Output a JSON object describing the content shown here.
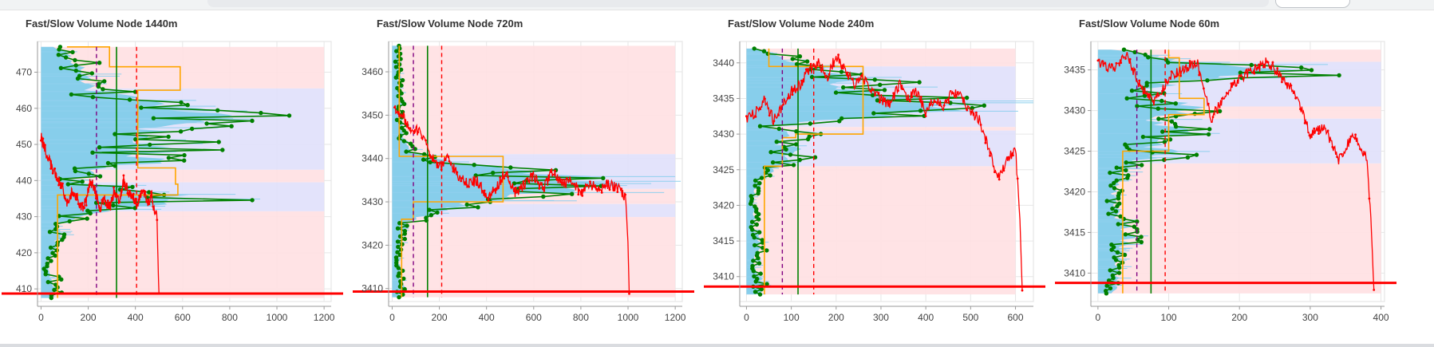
{
  "colors": {
    "hvn_band": "#ffe0e2",
    "lvn_band": "#e1e1fb",
    "fast_fill": "#87ceeb",
    "slow_profile": "#ffa500",
    "node_line": "#008000",
    "node_point": "#008000",
    "price": "#ff0000",
    "poc": "#008000",
    "va_low": "#800080",
    "va_high": "#ff0000",
    "current_price": "#ff0000",
    "grid": "#e6e6e6"
  },
  "chart_data": [
    {
      "type": "area",
      "title": "Fast/Slow Volume Node 1440m",
      "xlabel": "",
      "ylabel": "",
      "xlim": [
        -15,
        1230
      ],
      "ylim": [
        406.5,
        478.5
      ],
      "x_ticks": [
        "0",
        "200",
        "400",
        "600",
        "800",
        "1000",
        "1200"
      ],
      "x_tick_values": [
        0,
        200,
        400,
        600,
        800,
        1000,
        1200
      ],
      "y_ticks": [
        "410",
        "420",
        "430",
        "440",
        "450",
        "460",
        "470"
      ],
      "y_tick_values": [
        410,
        420,
        430,
        440,
        450,
        460,
        470
      ],
      "grid": true,
      "price_range": [
        407.5,
        477
      ],
      "hvn_bands": [
        [
          407.5,
          431.5
        ],
        [
          439.5,
          443
        ],
        [
          465.5,
          477
        ]
      ],
      "lvn_bands": [
        [
          431.5,
          439.5
        ],
        [
          443,
          465.5
        ]
      ],
      "fast_profile": {
        "levels": [
          407.5,
          410,
          413,
          416,
          419,
          422,
          425,
          428,
          431,
          434,
          435.5,
          437,
          440,
          443,
          446,
          449,
          452,
          455,
          458,
          461,
          464,
          467,
          470,
          473,
          477
        ],
        "volumes": [
          40,
          80,
          60,
          30,
          50,
          90,
          100,
          90,
          240,
          620,
          700,
          560,
          170,
          330,
          640,
          560,
          600,
          580,
          930,
          620,
          350,
          290,
          240,
          170,
          80
        ]
      },
      "slow_profile": {
        "levels": [
          407.5,
          431,
          436,
          439,
          443.5,
          465,
          468.5,
          471.5,
          477
        ],
        "volumes": [
          70,
          70,
          580,
          570,
          410,
          590,
          590,
          290,
          110
        ]
      },
      "price_path": {
        "x": [
          0,
          30,
          60,
          90,
          110,
          130,
          150,
          170,
          190,
          210,
          230,
          250,
          270,
          290,
          310,
          330,
          350,
          370,
          390,
          410,
          430,
          450,
          470,
          480,
          490,
          497,
          500
        ],
        "y": [
          452,
          446,
          442,
          438,
          434,
          437,
          436,
          432,
          434,
          440,
          437,
          432,
          435,
          432,
          437,
          434,
          440,
          437,
          435,
          433,
          438,
          434,
          436,
          431,
          433,
          415,
          408.5
        ]
      },
      "poc": 320,
      "va_low": 235,
      "va_high": 405,
      "current_price": 408.7
    },
    {
      "type": "area",
      "title": "Fast/Slow Volume Node 720m",
      "xlabel": "",
      "ylabel": "",
      "xlim": [
        -15,
        1230
      ],
      "ylim": [
        3407,
        3467
      ],
      "x_ticks": [
        "0",
        "200",
        "400",
        "600",
        "800",
        "1000",
        "1200"
      ],
      "x_tick_values": [
        0,
        200,
        400,
        600,
        800,
        1000,
        1200
      ],
      "y_ticks": [
        "3410",
        "3420",
        "3430",
        "3440",
        "3450",
        "3460"
      ],
      "y_tick_values": [
        3410,
        3420,
        3430,
        3440,
        3450,
        3460
      ],
      "grid": true,
      "price_range": [
        3408,
        3466
      ],
      "hvn_bands": [
        [
          3408,
          3426.5
        ],
        [
          3429.5,
          3433
        ],
        [
          3441,
          3466
        ]
      ],
      "lvn_bands": [
        [
          3426.5,
          3429.5
        ],
        [
          3433,
          3441
        ]
      ],
      "fast_profile": {
        "levels": [
          3408,
          3410,
          3413,
          3416,
          3419,
          3422,
          3425,
          3428,
          3430,
          3432,
          3434,
          3436,
          3438,
          3440,
          3442,
          3445,
          3448,
          3451,
          3454,
          3457,
          3460,
          3463,
          3466
        ],
        "volumes": [
          40,
          60,
          45,
          35,
          40,
          55,
          70,
          260,
          540,
          860,
          1000,
          870,
          450,
          210,
          95,
          60,
          55,
          50,
          45,
          40,
          40,
          35,
          30
        ]
      },
      "slow_profile": {
        "levels": [
          3408,
          3426,
          3430,
          3433,
          3440.5,
          3466
        ],
        "volumes": [
          40,
          90,
          470,
          470,
          30,
          30
        ]
      },
      "price_path": {
        "x": [
          10,
          40,
          80,
          120,
          160,
          200,
          240,
          280,
          320,
          360,
          400,
          440,
          480,
          520,
          560,
          600,
          640,
          680,
          720,
          760,
          800,
          840,
          880,
          920,
          960,
          990,
          1000,
          1005
        ],
        "y": [
          3452,
          3450,
          3447,
          3446,
          3441,
          3438,
          3440,
          3436,
          3434,
          3435,
          3431,
          3433,
          3437,
          3432,
          3434,
          3436,
          3433,
          3437,
          3434,
          3435,
          3432,
          3434,
          3433,
          3434,
          3433,
          3431,
          3420,
          3409
        ]
      },
      "poc": 150,
      "va_low": 90,
      "va_high": 210,
      "current_price": 3409.3
    },
    {
      "type": "area",
      "title": "Fast/Slow Volume Node 240m",
      "xlabel": "",
      "ylabel": "",
      "xlim": [
        -15,
        640
      ],
      "ylim": [
        3406.5,
        3443
      ],
      "x_ticks": [
        "0",
        "100",
        "200",
        "300",
        "400",
        "500",
        "600"
      ],
      "x_tick_values": [
        0,
        100,
        200,
        300,
        400,
        500,
        600
      ],
      "y_ticks": [
        "3410",
        "3415",
        "3420",
        "3425",
        "3430",
        "3435",
        "3440"
      ],
      "y_tick_values": [
        3410,
        3415,
        3420,
        3425,
        3430,
        3435,
        3440
      ],
      "grid": true,
      "price_range": [
        3407.5,
        3442
      ],
      "hvn_bands": [
        [
          3407.5,
          3425.5
        ],
        [
          3430.5,
          3431
        ],
        [
          3439.5,
          3442
        ]
      ],
      "lvn_bands": [
        [
          3425.5,
          3430.5
        ],
        [
          3431,
          3439.5
        ]
      ],
      "fast_profile": {
        "levels": [
          3407.5,
          3409,
          3411,
          3413,
          3415,
          3417,
          3419,
          3421,
          3423,
          3425,
          3427,
          3429,
          3430,
          3431,
          3433,
          3435,
          3437,
          3439,
          3441,
          3442
        ],
        "volumes": [
          30,
          45,
          25,
          30,
          40,
          20,
          25,
          20,
          35,
          70,
          150,
          90,
          160,
          40,
          500,
          480,
          290,
          220,
          80,
          40
        ]
      },
      "slow_profile": {
        "levels": [
          3407.5,
          3425.5,
          3429.5,
          3430,
          3439.5,
          3442
        ],
        "volumes": [
          40,
          80,
          110,
          260,
          50,
          50
        ]
      },
      "price_path": {
        "x": [
          0,
          20,
          40,
          60,
          80,
          100,
          120,
          140,
          160,
          180,
          200,
          220,
          240,
          260,
          280,
          300,
          320,
          340,
          360,
          380,
          400,
          420,
          440,
          460,
          480,
          500,
          520,
          540,
          560,
          580,
          600,
          610,
          615
        ],
        "y": [
          3432,
          3433,
          3435,
          3432,
          3434,
          3436,
          3437,
          3439,
          3440,
          3438,
          3441,
          3439,
          3437,
          3438,
          3436,
          3435,
          3434,
          3437,
          3435,
          3436,
          3433,
          3435,
          3434,
          3436,
          3435,
          3433,
          3432,
          3428,
          3424,
          3426,
          3428,
          3418,
          3408
        ]
      },
      "poc": 115,
      "va_low": 80,
      "va_high": 150,
      "current_price": 3408.6
    },
    {
      "type": "area",
      "title": "Fast/Slow Volume Node 60m",
      "xlabel": "",
      "ylabel": "",
      "xlim": [
        -10,
        405
      ],
      "ylim": [
        3406.5,
        3438.5
      ],
      "x_ticks": [
        "0",
        "100",
        "200",
        "300",
        "400"
      ],
      "x_tick_values": [
        0,
        100,
        200,
        300,
        400
      ],
      "y_ticks": [
        "3410",
        "3415",
        "3420",
        "3425",
        "3430",
        "3435"
      ],
      "y_tick_values": [
        3410,
        3415,
        3420,
        3425,
        3430,
        3435
      ],
      "grid": true,
      "price_range": [
        3407.5,
        3437.5
      ],
      "hvn_bands": [
        [
          3407.5,
          3423.5
        ],
        [
          3429,
          3430.5
        ],
        [
          3436,
          3437.5
        ]
      ],
      "lvn_bands": [
        [
          3423.5,
          3429
        ],
        [
          3430.5,
          3436
        ]
      ],
      "fast_profile": {
        "levels": [
          3407.5,
          3409,
          3411,
          3413,
          3415,
          3417,
          3419,
          3421,
          3423,
          3425,
          3426,
          3427.5,
          3429,
          3430.5,
          3432,
          3433.5,
          3435,
          3436.5,
          3437.5
        ],
        "volumes": [
          20,
          40,
          35,
          45,
          60,
          35,
          30,
          35,
          50,
          130,
          90,
          160,
          110,
          160,
          90,
          120,
          340,
          110,
          30
        ]
      },
      "slow_profile": {
        "levels": [
          3407.5,
          3423,
          3425,
          3429.5,
          3431.5,
          3436.5,
          3437.5
        ],
        "volumes": [
          35,
          35,
          100,
          150,
          115,
          100,
          100
        ]
      },
      "price_path": {
        "x": [
          0,
          20,
          40,
          60,
          80,
          100,
          120,
          140,
          160,
          180,
          200,
          220,
          240,
          260,
          280,
          300,
          320,
          340,
          360,
          380,
          385,
          390
        ],
        "y": [
          3436,
          3435,
          3437,
          3433,
          3431,
          3434,
          3435,
          3436,
          3429,
          3432,
          3434,
          3435,
          3436,
          3434,
          3432,
          3427,
          3428,
          3424,
          3427,
          3424,
          3418,
          3408
        ]
      },
      "poc": 75,
      "va_low": 55,
      "va_high": 95,
      "current_price": 3408.8
    }
  ]
}
